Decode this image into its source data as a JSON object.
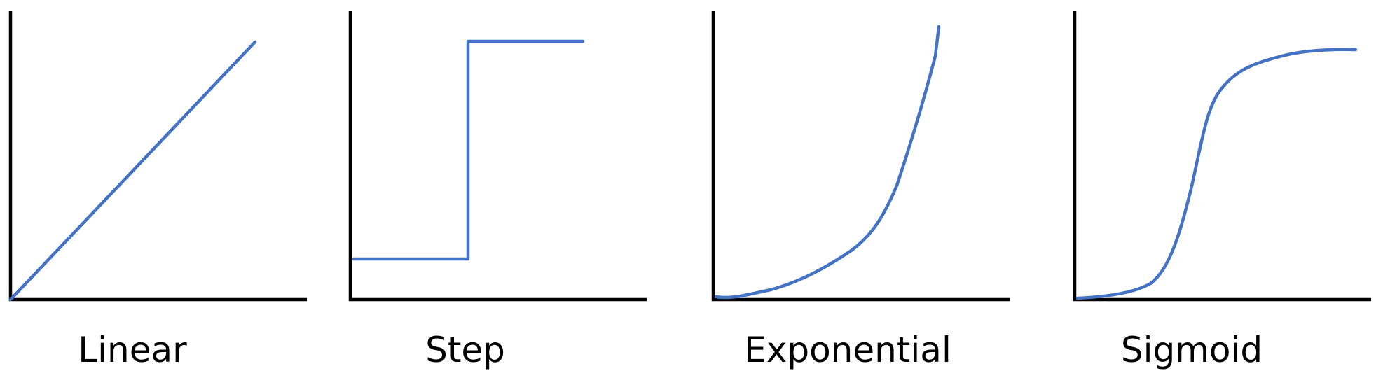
{
  "colors": {
    "curve": "#4472C4",
    "axis": "#000000",
    "background": "#ffffff"
  },
  "panels": [
    {
      "label": "Linear",
      "shape": "linear"
    },
    {
      "label": "Step",
      "shape": "step"
    },
    {
      "label": "Exponential",
      "shape": "exponential"
    },
    {
      "label": "Sigmoid",
      "shape": "sigmoid"
    }
  ]
}
